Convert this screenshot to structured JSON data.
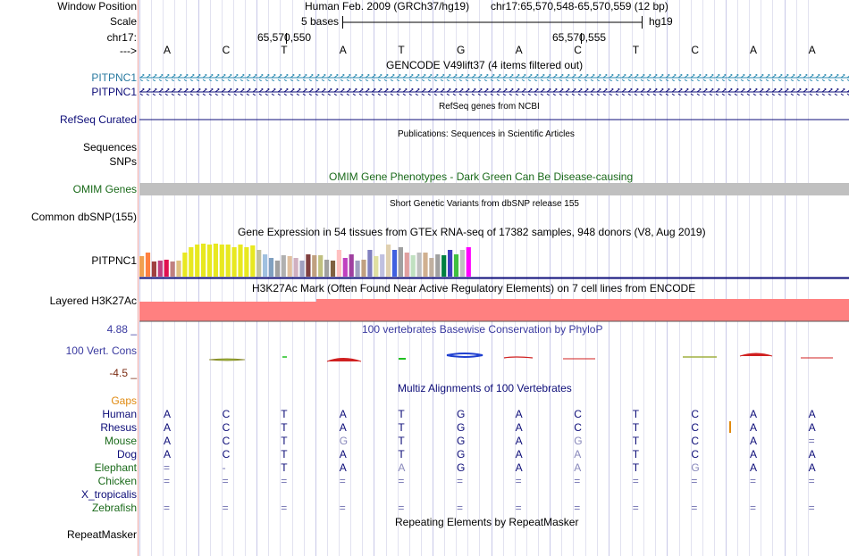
{
  "labels": {
    "window_position": "Window Position",
    "scale": "Scale",
    "chrom": "chr17:",
    "arrow": "--->",
    "pitpnc1_a": "PITPNC1",
    "pitpnc1_b": "PITPNC1",
    "refseq": "RefSeq Curated",
    "sequences": "Sequences",
    "snps": "SNPs",
    "omim": "OMIM Genes",
    "common_dbsnp": "Common dbSNP(155)",
    "gtex_gene": "PITPNC1",
    "h3k27ac": "Layered H3K27Ac",
    "phylop_max": "4.88 _",
    "phylop_label": "100 Vert. Cons",
    "phylop_min": "-4.5 _",
    "gaps": "Gaps",
    "species": [
      "Human",
      "Rhesus",
      "Mouse",
      "Dog",
      "Elephant",
      "Chicken",
      "X_tropicalis",
      "Zebrafish"
    ],
    "repeatmasker": "RepeatMasker"
  },
  "header": {
    "assembly": "Human Feb. 2009 (GRCh37/hg19)",
    "position": "chr17:65,570,548-65,570,559 (12 bp)",
    "scale_bases": "5 bases",
    "scale_db": "hg19",
    "coord_a": "65,570,550",
    "coord_b": "65,570,555"
  },
  "bases": [
    "A",
    "C",
    "T",
    "A",
    "T",
    "G",
    "A",
    "C",
    "T",
    "C",
    "A",
    "A"
  ],
  "track_titles": {
    "gencode": "GENCODE V49lift37 (4 items filtered out)",
    "refseq": "RefSeq genes from NCBI",
    "pubs": "Publications: Sequences in Scientific Articles",
    "omim": "OMIM Gene Phenotypes - Dark Green Can Be Disease-causing",
    "dbsnp": "Short Genetic Variants from dbSNP release 155",
    "gtex": "Gene Expression in 54 tissues from GTEx RNA-seq of 17382 samples, 948 donors (V8, Aug 2019)",
    "h3k27ac": "H3K27Ac Mark (Often Found Near Active Regulatory Elements) on 7 cell lines from ENCODE",
    "phylop": "100 vertebrates Basewise Conservation by PhyloP",
    "multiz": "Multiz Alignments of 100 Vertebrates",
    "repeatmasker": "Repeating Elements by RepeatMasker"
  },
  "alignment": {
    "Human": [
      "A",
      "C",
      "T",
      "A",
      "T",
      "G",
      "A",
      "C",
      "T",
      "C",
      "A",
      "A"
    ],
    "Rhesus": [
      "A",
      "C",
      "T",
      "A",
      "T",
      "G",
      "A",
      "C",
      "T",
      "C",
      "A",
      "A"
    ],
    "Mouse": [
      "A",
      "C",
      "T",
      "G",
      "T",
      "G",
      "A",
      "G",
      "T",
      "C",
      "A",
      "="
    ],
    "Dog": [
      "A",
      "C",
      "T",
      "A",
      "T",
      "G",
      "A",
      "A",
      "T",
      "C",
      "A",
      "A"
    ],
    "Elephant": [
      "=",
      "-",
      "T",
      "A",
      "A",
      "G",
      "A",
      "A",
      "T",
      "G",
      "A",
      "A"
    ],
    "Chicken": [
      "=",
      "=",
      "=",
      "=",
      "=",
      "=",
      "=",
      "=",
      "=",
      "=",
      "=",
      "="
    ],
    "X_tropicalis": [
      "",
      "",
      "",
      "",
      "",
      "",
      "",
      "",
      "",
      "",
      "",
      ""
    ],
    "Zebrafish": [
      "=",
      "=",
      "=",
      "=",
      "=",
      "=",
      "=",
      "=",
      "=",
      "=",
      "=",
      "="
    ]
  },
  "colors": {
    "gencode_top": "#2a8ab0",
    "gencode_bottom": "#0c0c78",
    "omim_bar": "#c0c0c0",
    "h3k27ac_fill": "#ff8080",
    "phylop_text": "#3a3aa0"
  },
  "gtex_values": [
    0.38,
    0.45,
    0.28,
    0.3,
    0.32,
    0.28,
    0.3,
    0.45,
    0.55,
    0.6,
    0.62,
    0.6,
    0.62,
    0.6,
    0.6,
    0.55,
    0.6,
    0.55,
    0.58,
    0.5,
    0.42,
    0.35,
    0.3,
    0.4,
    0.38,
    0.35,
    0.3,
    0.42,
    0.4,
    0.4,
    0.32,
    0.3,
    0.5,
    0.35,
    0.42,
    0.3,
    0.32,
    0.5,
    0.38,
    0.42,
    0.6,
    0.5,
    0.55,
    0.45,
    0.4,
    0.45,
    0.45,
    0.35,
    0.42,
    0.4,
    0.5,
    0.42,
    0.5,
    0.55
  ]
}
